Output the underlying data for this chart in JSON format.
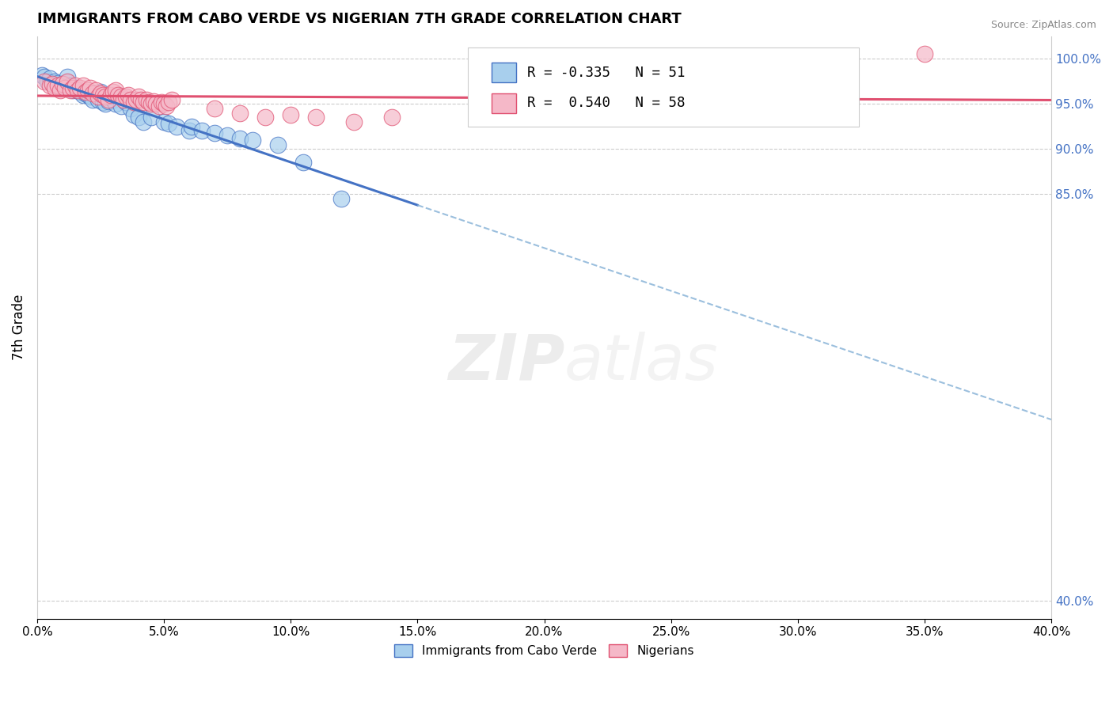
{
  "title": "IMMIGRANTS FROM CABO VERDE VS NIGERIAN 7TH GRADE CORRELATION CHART",
  "source": "Source: ZipAtlas.com",
  "ylabel": "7th Grade",
  "ylabel_right_ticks": [
    "100.0%",
    "95.0%",
    "90.0%",
    "85.0%",
    "40.0%"
  ],
  "ylabel_right_positions": [
    100.0,
    95.0,
    90.0,
    85.0,
    40.0
  ],
  "legend_blue_R": "-0.335",
  "legend_blue_N": "51",
  "legend_pink_R": "0.540",
  "legend_pink_N": "58",
  "blue_color": "#A8CFED",
  "pink_color": "#F5B8C8",
  "trend_blue": "#4472C4",
  "trend_pink": "#E05070",
  "trend_dashed_color": "#8AB4D8",
  "watermark_zip": "ZIP",
  "watermark_atlas": "atlas",
  "xlim": [
    0.0,
    40.0
  ],
  "ylim": [
    38.0,
    102.5
  ],
  "xticks": [
    0.0,
    5.0,
    10.0,
    15.0,
    20.0,
    25.0,
    30.0,
    35.0,
    40.0
  ],
  "xticklabels": [
    "0.0%",
    "5.0%",
    "10.0%",
    "15.0%",
    "20.0%",
    "25.0%",
    "30.0%",
    "35.0%",
    "40.0%"
  ],
  "blue_scatter_x": [
    0.2,
    0.3,
    0.4,
    0.5,
    0.6,
    0.7,
    0.8,
    0.9,
    1.0,
    1.0,
    1.1,
    1.2,
    1.2,
    1.3,
    1.4,
    1.5,
    1.6,
    1.7,
    1.8,
    1.9,
    2.0,
    2.1,
    2.2,
    2.3,
    2.4,
    2.5,
    2.6,
    2.7,
    2.8,
    3.0,
    3.1,
    3.3,
    3.5,
    3.7,
    3.8,
    4.0,
    4.2,
    4.5,
    5.0,
    5.2,
    5.5,
    6.0,
    6.1,
    6.5,
    7.0,
    7.5,
    8.0,
    8.5,
    9.5,
    10.5,
    12.0
  ],
  "blue_scatter_y": [
    98.2,
    98.0,
    97.5,
    97.8,
    97.2,
    97.5,
    97.3,
    96.8,
    97.0,
    97.2,
    97.1,
    97.4,
    98.0,
    97.0,
    96.5,
    96.8,
    96.5,
    96.3,
    96.0,
    96.2,
    96.0,
    95.8,
    95.5,
    96.2,
    95.5,
    96.3,
    95.2,
    95.0,
    95.3,
    95.5,
    95.0,
    94.8,
    95.2,
    94.5,
    93.8,
    93.5,
    93.0,
    93.5,
    93.0,
    92.8,
    92.5,
    92.0,
    92.5,
    92.0,
    91.8,
    91.5,
    91.2,
    91.0,
    90.5,
    88.5,
    84.5
  ],
  "pink_scatter_x": [
    0.3,
    0.5,
    0.6,
    0.7,
    0.8,
    0.9,
    1.0,
    1.1,
    1.2,
    1.3,
    1.4,
    1.5,
    1.6,
    1.7,
    1.8,
    1.9,
    2.0,
    2.1,
    2.2,
    2.3,
    2.4,
    2.5,
    2.6,
    2.7,
    2.8,
    2.9,
    3.0,
    3.1,
    3.2,
    3.3,
    3.4,
    3.5,
    3.6,
    3.7,
    3.8,
    3.9,
    4.0,
    4.1,
    4.2,
    4.3,
    4.4,
    4.5,
    4.6,
    4.7,
    4.8,
    4.9,
    5.0,
    5.1,
    5.2,
    5.3,
    7.0,
    8.0,
    9.0,
    10.0,
    11.0,
    12.5,
    14.0,
    35.0
  ],
  "pink_scatter_y": [
    97.5,
    97.0,
    97.2,
    96.8,
    97.0,
    96.5,
    97.2,
    96.8,
    97.5,
    96.5,
    96.8,
    97.0,
    96.5,
    96.8,
    97.0,
    96.3,
    96.5,
    96.8,
    96.2,
    96.5,
    95.8,
    96.2,
    96.0,
    95.8,
    95.5,
    96.0,
    96.3,
    96.5,
    96.0,
    95.8,
    95.5,
    95.8,
    96.0,
    95.5,
    95.2,
    95.5,
    95.8,
    95.5,
    95.2,
    95.5,
    95.2,
    95.0,
    95.3,
    95.0,
    94.8,
    95.2,
    95.0,
    94.8,
    95.2,
    95.5,
    94.5,
    94.0,
    93.5,
    93.8,
    93.5,
    93.0,
    93.5,
    100.5
  ],
  "legend_label_blue": "Immigrants from Cabo Verde",
  "legend_label_pink": "Nigerians",
  "blue_trend_x_solid_end": 15.0,
  "grid_y_values": [
    100.0,
    95.0,
    90.0,
    85.0,
    40.0
  ]
}
